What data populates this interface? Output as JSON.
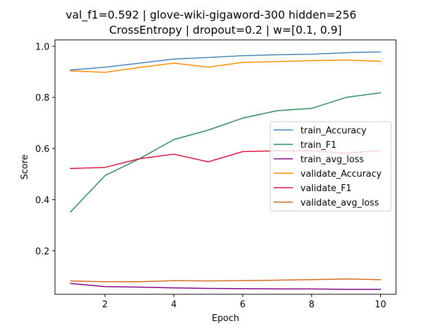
{
  "chart_data": {
    "type": "line",
    "title_line1": "val_f1=0.592 | glove-wiki-gigaword-300  hidden=256",
    "title_line2": "CrossEntropy | dropout=0.2 | w=[0.1, 0.9]",
    "xlabel": "Epoch",
    "ylabel": "Score",
    "x": [
      1,
      2,
      3,
      4,
      5,
      6,
      7,
      8,
      9,
      10
    ],
    "xlim": [
      0.55,
      10.45
    ],
    "ylim": [
      0.03,
      1.025
    ],
    "x_ticks": [
      2,
      4,
      6,
      8,
      10
    ],
    "y_ticks": [
      0.2,
      0.4,
      0.6,
      0.8,
      1.0
    ],
    "x_tick_labels": [
      "2",
      "4",
      "6",
      "8",
      "10"
    ],
    "y_tick_labels": [
      "0.2",
      "0.4",
      "0.6",
      "0.8",
      "1.0"
    ],
    "grid": false,
    "legend_placement": "center-right",
    "series": [
      {
        "name": "train_Accuracy",
        "color": "#4682b4",
        "values": [
          0.907,
          0.918,
          0.934,
          0.95,
          0.956,
          0.963,
          0.967,
          0.969,
          0.975,
          0.978
        ]
      },
      {
        "name": "train_F1",
        "color": "#2e8b57",
        "values": [
          0.352,
          0.494,
          0.56,
          0.635,
          0.672,
          0.719,
          0.748,
          0.757,
          0.8,
          0.818
        ]
      },
      {
        "name": "train_avg_loss",
        "color": "#800080",
        "values": [
          0.072,
          0.06,
          0.058,
          0.055,
          0.053,
          0.052,
          0.051,
          0.051,
          0.049,
          0.049
        ]
      },
      {
        "name": "validate_Accuracy",
        "color": "#ff8c00",
        "values": [
          0.904,
          0.898,
          0.917,
          0.934,
          0.918,
          0.937,
          0.94,
          0.944,
          0.946,
          0.941
        ]
      },
      {
        "name": "validate_F1",
        "color": "#dc143c",
        "values": [
          0.522,
          0.526,
          0.56,
          0.578,
          0.548,
          0.588,
          0.591,
          0.591,
          0.582,
          0.592
        ]
      },
      {
        "name": "validate_avg_loss",
        "color": "#d2691e",
        "values": [
          0.082,
          0.079,
          0.079,
          0.083,
          0.082,
          0.083,
          0.085,
          0.087,
          0.09,
          0.087
        ]
      }
    ]
  }
}
